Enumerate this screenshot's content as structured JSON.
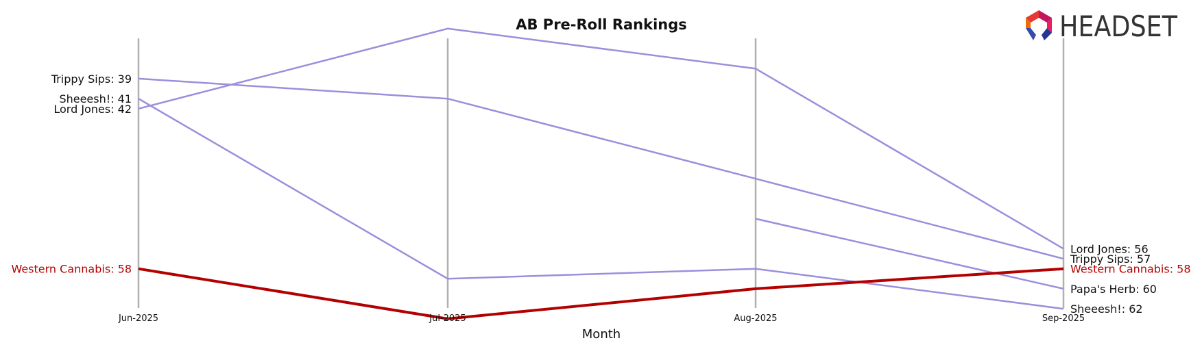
{
  "chart_data": {
    "type": "line",
    "title": "AB Pre-Roll Rankings",
    "xlabel": "Month",
    "ylabel": "",
    "y_inverted": true,
    "ylim": [
      64,
      32
    ],
    "categories": [
      "Jun-2025",
      "Jul-2025",
      "Aug-2025",
      "Sep-2025"
    ],
    "series": [
      {
        "name": "Trippy Sips",
        "values": [
          39,
          41,
          49,
          57
        ],
        "color": "#9b8fdc",
        "highlight": false
      },
      {
        "name": "Sheeesh!",
        "values": [
          41,
          59,
          58,
          62
        ],
        "color": "#9b8fdc",
        "highlight": false
      },
      {
        "name": "Lord Jones",
        "values": [
          42,
          34,
          38,
          56
        ],
        "color": "#9b8fdc",
        "highlight": false
      },
      {
        "name": "Papa's Herb",
        "values": [
          null,
          null,
          53,
          60
        ],
        "color": "#9b8fdc",
        "highlight": false
      },
      {
        "name": "Western Cannabis",
        "values": [
          58,
          63,
          60,
          58
        ],
        "color": "#b30000",
        "highlight": true
      }
    ],
    "left_labels": [
      {
        "text": "Trippy Sips: 39",
        "series": "Trippy Sips"
      },
      {
        "text": "Sheeesh!: 41",
        "series": "Sheeesh!"
      },
      {
        "text": "Lord Jones: 42",
        "series": "Lord Jones"
      },
      {
        "text": "Western Cannabis: 58",
        "series": "Western Cannabis"
      }
    ],
    "right_labels": [
      {
        "text": "Lord Jones: 56",
        "series": "Lord Jones"
      },
      {
        "text": "Trippy Sips: 57",
        "series": "Trippy Sips"
      },
      {
        "text": "Western Cannabis: 58",
        "series": "Western Cannabis"
      },
      {
        "text": "Papa's Herb: 60",
        "series": "Papa's Herb"
      },
      {
        "text": "Sheeesh!: 62",
        "series": "Sheeesh!"
      }
    ],
    "grid": "vertical lines at each month"
  },
  "logo": {
    "text": "HEADSET",
    "icon": "headset-logo-icon"
  }
}
